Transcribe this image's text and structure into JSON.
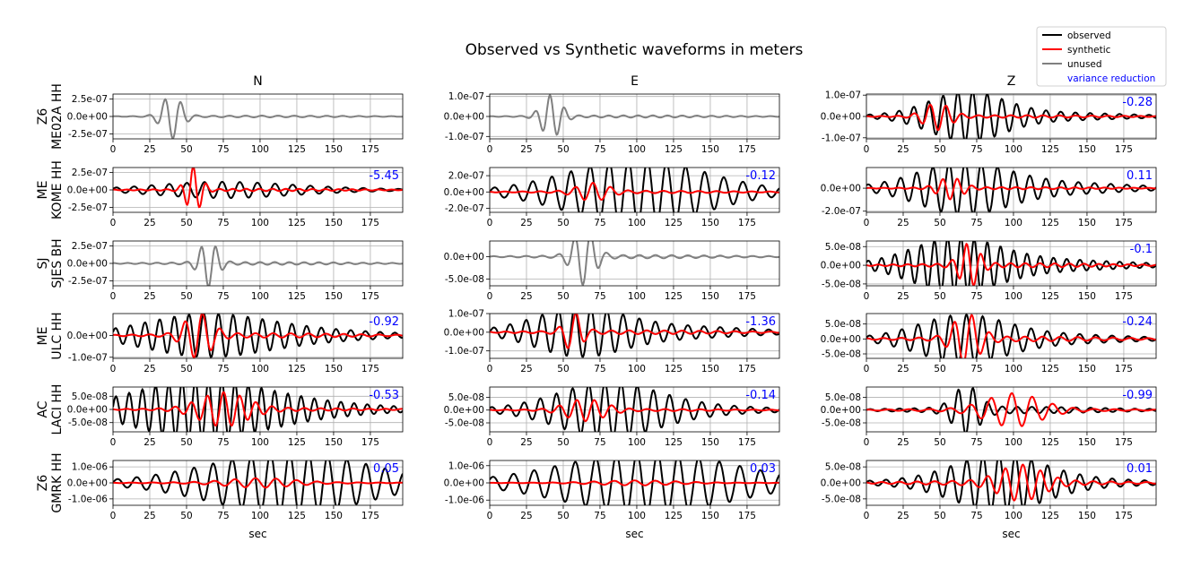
{
  "title": "Observed vs Synthetic waveforms in meters",
  "colors": {
    "observed": "#000000",
    "synthetic": "#ff0000",
    "unused": "#808080",
    "vr": "#0000ff",
    "grid": "#b0b0b0"
  },
  "legend": {
    "location": "top-right",
    "entries": [
      {
        "label": "observed",
        "color": "#000000",
        "line": true
      },
      {
        "label": "synthetic",
        "color": "#ff0000",
        "line": true
      },
      {
        "label": "unused",
        "color": "#808080",
        "line": true
      },
      {
        "label": "variance reduction",
        "color": "#0000ff",
        "line": false
      }
    ]
  },
  "chart_data": {
    "type": "line",
    "title": "Observed vs Synthetic waveforms in meters",
    "xlabel": "sec",
    "xlim": [
      0,
      197
    ],
    "xticks": [
      0,
      25,
      50,
      75,
      100,
      125,
      150,
      175
    ],
    "grid": true,
    "columns": [
      "N",
      "E",
      "Z"
    ],
    "rows": [
      {
        "station": [
          "Z6",
          "ME02A HH"
        ],
        "panels": [
          {
            "component": "N",
            "used": false,
            "vr": null,
            "ylim": [
              -3.2e-07,
              3.2e-07
            ],
            "yticks": [
              "2.5e-07",
              "0.0e+00",
              "-2.5e-07"
            ],
            "ytick_values": [
              2.5e-07,
              0,
              -2.5e-07
            ],
            "obs": {
              "amp": 3.1e-07,
              "center": 40,
              "width": 9,
              "period": 11,
              "tail": 0.04,
              "phase": 0.3
            }
          },
          {
            "component": "E",
            "used": false,
            "vr": null,
            "ylim": [
              -1.12e-07,
              1.12e-07
            ],
            "yticks": [
              "1.0e-07",
              "0.0e+00",
              "-1.0e-07"
            ],
            "ytick_values": [
              1e-07,
              0,
              -1e-07
            ],
            "obs": {
              "amp": 1.05e-07,
              "center": 42,
              "width": 9,
              "period": 10,
              "tail": 0.05,
              "phase": 1.0
            }
          },
          {
            "component": "Z",
            "used": true,
            "vr": "-0.28",
            "ylim": [
              -1.05e-07,
              1.05e-07
            ],
            "yticks": [
              "1.0e-07",
              "0.0e+00",
              "-1.0e-07"
            ],
            "ytick_values": [
              1e-07,
              0,
              -1e-07
            ],
            "obs": {
              "amp": 1e-07,
              "center": 68,
              "width": 34,
              "period": 10,
              "tail": 0.22,
              "phase": 0.2
            },
            "syn": {
              "amp": 6e-08,
              "center": 48,
              "width": 12,
              "period": 11,
              "tail": 0.1,
              "phase": 2.0
            }
          }
        ]
      },
      {
        "station": [
          "ME",
          "KOME HH"
        ],
        "panels": [
          {
            "component": "N",
            "used": true,
            "vr": "-5.45",
            "ylim": [
              -3.2e-07,
              3.2e-07
            ],
            "yticks": [
              "2.5e-07",
              "0.0e+00",
              "-2.5e-07"
            ],
            "ytick_values": [
              2.5e-07,
              0,
              -2.5e-07
            ],
            "obs": {
              "amp": 8e-08,
              "center": 70,
              "width": 60,
              "period": 12,
              "tail": 0.5,
              "phase": 0.4
            },
            "syn": {
              "amp": 3.2e-07,
              "center": 55,
              "width": 7,
              "period": 9,
              "tail": 0.05,
              "phase": 1.2
            }
          },
          {
            "component": "E",
            "used": true,
            "vr": "-0.12",
            "ylim": [
              -2.5e-07,
              3e-07
            ],
            "yticks": [
              "2.0e-07",
              "0.0e+00",
              "-2.0e-07"
            ],
            "ytick_values": [
              2e-07,
              0,
              -2e-07
            ],
            "obs": {
              "amp": 3e-07,
              "center": 100,
              "width": 60,
              "period": 13,
              "tail": 0.35,
              "phase": 0.0
            },
            "syn": {
              "amp": 1e-07,
              "center": 70,
              "width": 14,
              "period": 12,
              "tail": 0.15,
              "phase": 2.5
            }
          },
          {
            "component": "Z",
            "used": true,
            "vr": "0.11",
            "ylim": [
              -2.1e-07,
              1.8e-07
            ],
            "yticks": [
              "0.0e+00",
              "-2.0e-07"
            ],
            "ytick_values": [
              0,
              -2e-07
            ],
            "obs": {
              "amp": 1.8e-07,
              "center": 65,
              "width": 40,
              "period": 11,
              "tail": 0.35,
              "phase": 0.9
            },
            "syn": {
              "amp": 9e-08,
              "center": 57,
              "width": 11,
              "period": 10,
              "tail": 0.1,
              "phase": 0.4
            }
          }
        ]
      },
      {
        "station": [
          "SJ",
          "SJES BH"
        ],
        "panels": [
          {
            "component": "N",
            "used": false,
            "vr": null,
            "ylim": [
              -3.2e-07,
              3.2e-07
            ],
            "yticks": [
              "2.5e-07",
              "0.0e+00",
              "-2.5e-07"
            ],
            "ytick_values": [
              2.5e-07,
              0,
              -2.5e-07
            ],
            "obs": {
              "amp": 3.2e-07,
              "center": 65,
              "width": 8,
              "period": 10,
              "tail": 0.06,
              "phase": 1.6
            }
          },
          {
            "component": "E",
            "used": false,
            "vr": null,
            "ylim": [
              -6.5e-08,
              3.5e-08
            ],
            "yticks": [
              "0.0e+00",
              "-5.0e-08"
            ],
            "ytick_values": [
              0,
              -5e-08
            ],
            "obs": {
              "amp": 6e-08,
              "center": 64,
              "width": 10,
              "period": 11,
              "tail": 0.06,
              "phase": 0.0
            }
          },
          {
            "component": "Z",
            "used": true,
            "vr": "-0.1",
            "ylim": [
              -5.5e-08,
              6.5e-08
            ],
            "yticks": [
              "5.0e-08",
              "0.0e+00",
              "-5.0e-08"
            ],
            "ytick_values": [
              5e-08,
              0,
              -5e-08
            ],
            "obs": {
              "amp": 6e-08,
              "center": 60,
              "width": 40,
              "period": 9,
              "tail": 0.3,
              "phase": 0.7
            },
            "syn": {
              "amp": 5.5e-08,
              "center": 70,
              "width": 9,
              "period": 10,
              "tail": 0.1,
              "phase": 2.8
            }
          }
        ]
      },
      {
        "station": [
          "ME",
          "ULC HH"
        ],
        "panels": [
          {
            "component": "N",
            "used": true,
            "vr": "-0.92",
            "ylim": [
              -1.05e-07,
              1e-07
            ],
            "yticks": [
              "0.0e+00",
              "-1.0e-07"
            ],
            "ytick_values": [
              0,
              -1e-07
            ],
            "obs": {
              "amp": 7e-08,
              "center": 60,
              "width": 55,
              "period": 10,
              "tail": 0.5,
              "phase": 0.5
            },
            "syn": {
              "amp": 1e-07,
              "center": 58,
              "width": 12,
              "period": 12,
              "tail": 0.1,
              "phase": 1.1
            }
          },
          {
            "component": "E",
            "used": true,
            "vr": "-1.36",
            "ylim": [
              -1.4e-07,
              1e-07
            ],
            "yticks": [
              "1.0e-07",
              "0.0e+00",
              "-1.0e-07"
            ],
            "ytick_values": [
              1e-07,
              0,
              -1e-07
            ],
            "obs": {
              "amp": 1e-07,
              "center": 60,
              "width": 40,
              "period": 11,
              "tail": 0.4,
              "phase": 0.0
            },
            "syn": {
              "amp": 1e-07,
              "center": 57,
              "width": 8,
              "period": 12,
              "tail": 0.1,
              "phase": 2.2
            }
          },
          {
            "component": "Z",
            "used": true,
            "vr": "-0.24",
            "ylim": [
              -6.5e-08,
              8.5e-08
            ],
            "yticks": [
              "5.0e-08",
              "0.0e+00",
              "-5.0e-08"
            ],
            "ytick_values": [
              5e-08,
              0,
              -5e-08
            ],
            "obs": {
              "amp": 6.5e-08,
              "center": 65,
              "width": 40,
              "period": 11,
              "tail": 0.3,
              "phase": 0.4
            },
            "syn": {
              "amp": 8e-08,
              "center": 68,
              "width": 12,
              "period": 12,
              "tail": 0.1,
              "phase": 1.7
            }
          }
        ]
      },
      {
        "station": [
          "AC",
          "LACI HH"
        ],
        "panels": [
          {
            "component": "N",
            "used": true,
            "vr": "-0.53",
            "ylim": [
              -8.5e-08,
              8.5e-08
            ],
            "yticks": [
              "5.0e-08",
              "0.0e+00",
              "-5.0e-08"
            ],
            "ytick_values": [
              5e-08,
              0,
              -5e-08
            ],
            "obs": {
              "amp": 8.5e-08,
              "center": 55,
              "width": 60,
              "period": 9,
              "tail": 0.4,
              "phase": 0.2
            },
            "syn": {
              "amp": 6e-08,
              "center": 75,
              "width": 22,
              "period": 11,
              "tail": 0.1,
              "phase": 2.6
            }
          },
          {
            "component": "E",
            "used": true,
            "vr": "-0.14",
            "ylim": [
              -8.5e-08,
              9e-08
            ],
            "yticks": [
              "5.0e-08",
              "0.0e+00",
              "-5.0e-08"
            ],
            "ytick_values": [
              5e-08,
              0,
              -5e-08
            ],
            "obs": {
              "amp": 8.5e-08,
              "center": 80,
              "width": 45,
              "period": 11,
              "tail": 0.3,
              "phase": 0.8
            },
            "syn": {
              "amp": 4e-08,
              "center": 65,
              "width": 18,
              "period": 12,
              "tail": 0.1,
              "phase": 2.0
            }
          },
          {
            "component": "Z",
            "used": true,
            "vr": "-0.99",
            "ylim": [
              -8.5e-08,
              9e-08
            ],
            "yticks": [
              "5.0e-08",
              "0.0e+00",
              "-5.0e-08"
            ],
            "ytick_values": [
              5e-08,
              0,
              -5e-08
            ],
            "obs": {
              "amp": 8.5e-08,
              "center": 68,
              "width": 12,
              "period": 10,
              "tail": 0.15,
              "phase": 0.0
            },
            "syn": {
              "amp": 6e-08,
              "center": 100,
              "width": 25,
              "period": 14,
              "tail": 0.1,
              "phase": 1.2
            }
          }
        ]
      },
      {
        "station": [
          "Z6",
          "GMRK HH"
        ],
        "panels": [
          {
            "component": "N",
            "used": true,
            "vr": "0.05",
            "ylim": [
              -1.4e-06,
              1.4e-06
            ],
            "yticks": [
              "1.0e-06",
              "0.0e+00",
              "-1.0e-06"
            ],
            "ytick_values": [
              1e-06,
              0,
              -1e-06
            ],
            "obs": {
              "amp": 1.4e-06,
              "center": 125,
              "width": 70,
              "period": 13,
              "tail": 0.4,
              "phase": 0.1
            },
            "syn": {
              "amp": 2.5e-07,
              "center": 100,
              "width": 30,
              "period": 14,
              "tail": 0.2,
              "phase": 2.1
            }
          },
          {
            "component": "E",
            "used": true,
            "vr": "0.03",
            "ylim": [
              -1.3e-06,
              1.3e-06
            ],
            "yticks": [
              "1.0e-06",
              "0.0e+00",
              "-1.0e-06"
            ],
            "ytick_values": [
              1e-06,
              0,
              -1e-06
            ],
            "obs": {
              "amp": 1.25e-06,
              "center": 110,
              "width": 80,
              "period": 14,
              "tail": 0.4,
              "phase": 0.6
            },
            "syn": {
              "amp": 1.2e-07,
              "center": 100,
              "width": 35,
              "period": 14,
              "tail": 0.2,
              "phase": 1.3
            }
          },
          {
            "component": "Z",
            "used": true,
            "vr": "0.01",
            "ylim": [
              -7e-08,
              7e-08
            ],
            "yticks": [
              "5.0e-08",
              "0.0e+00",
              "-5.0e-08"
            ],
            "ytick_values": [
              5e-08,
              0,
              -5e-08
            ],
            "obs": {
              "amp": 7e-08,
              "center": 90,
              "width": 40,
              "period": 11,
              "tail": 0.3,
              "phase": 0.3
            },
            "syn": {
              "amp": 5e-08,
              "center": 105,
              "width": 20,
              "period": 12,
              "tail": 0.15,
              "phase": 2.4
            }
          }
        ]
      }
    ]
  }
}
